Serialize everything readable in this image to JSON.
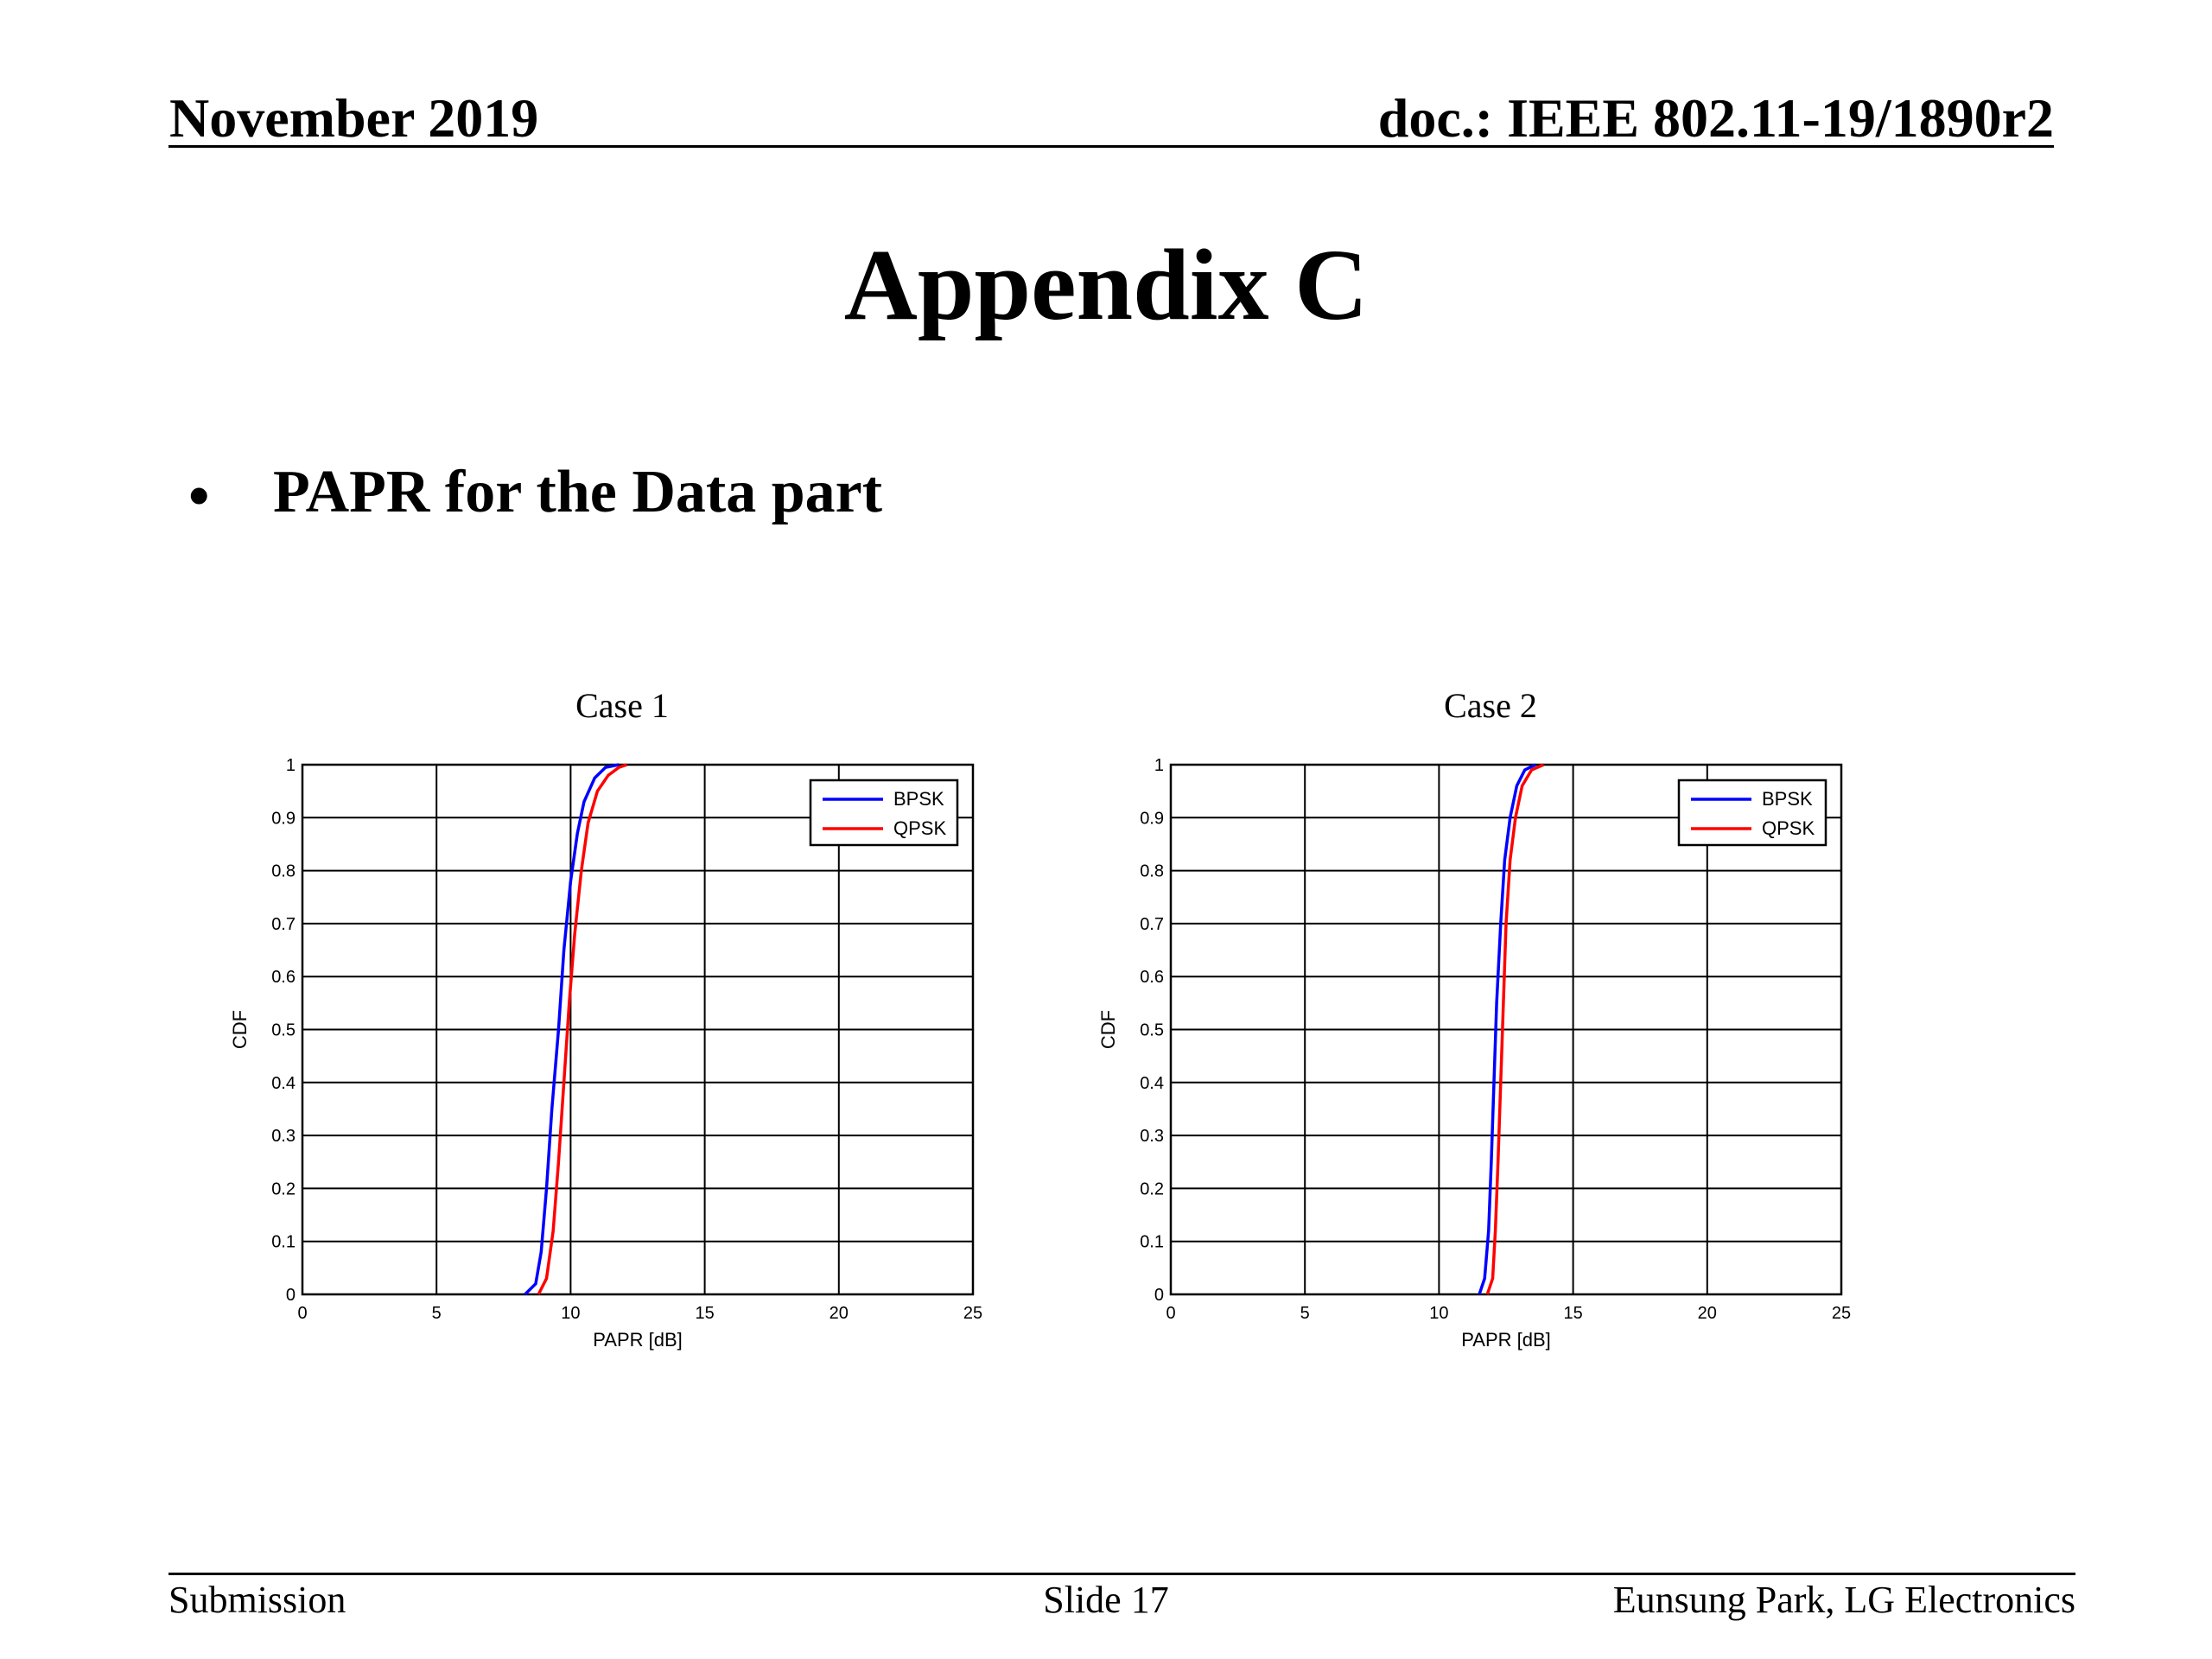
{
  "header": {
    "date": "November 2019",
    "doc": "doc.: IEEE 802.11-19/1890r2"
  },
  "slide": {
    "title": "Appendix C",
    "bullet_marker": "•",
    "bullet_text": "PAPR for the Data part"
  },
  "footer": {
    "left": "Submission",
    "center": "Slide 17",
    "right": "Eunsung Park, LG Electronics"
  },
  "chart_data": [
    {
      "type": "line",
      "title": "Case 1",
      "xlabel": "PAPR [dB]",
      "ylabel": "CDF",
      "xlim": [
        0,
        25
      ],
      "ylim": [
        0,
        1
      ],
      "xticks": [
        "0",
        "5",
        "10",
        "15",
        "20",
        "25"
      ],
      "yticks": [
        "0",
        "0.1",
        "0.2",
        "0.3",
        "0.4",
        "0.5",
        "0.6",
        "0.7",
        "0.8",
        "0.9",
        "1"
      ],
      "grid": true,
      "legend_position": "top-right",
      "series": [
        {
          "name": "BPSK",
          "color": "#0000ff",
          "points": [
            [
              8.3,
              0
            ],
            [
              8.7,
              0.02
            ],
            [
              8.9,
              0.08
            ],
            [
              9.1,
              0.2
            ],
            [
              9.3,
              0.35
            ],
            [
              9.55,
              0.5
            ],
            [
              9.75,
              0.65
            ],
            [
              10.0,
              0.78
            ],
            [
              10.25,
              0.87
            ],
            [
              10.5,
              0.93
            ],
            [
              10.9,
              0.975
            ],
            [
              11.3,
              0.995
            ],
            [
              11.8,
              1
            ]
          ]
        },
        {
          "name": "QPSK",
          "color": "#ff0000",
          "points": [
            [
              8.8,
              0
            ],
            [
              9.1,
              0.03
            ],
            [
              9.35,
              0.12
            ],
            [
              9.55,
              0.25
            ],
            [
              9.75,
              0.4
            ],
            [
              9.95,
              0.55
            ],
            [
              10.15,
              0.68
            ],
            [
              10.4,
              0.8
            ],
            [
              10.65,
              0.89
            ],
            [
              11.0,
              0.95
            ],
            [
              11.4,
              0.98
            ],
            [
              11.8,
              0.995
            ],
            [
              12.1,
              1
            ]
          ]
        }
      ]
    },
    {
      "type": "line",
      "title": "Case 2",
      "xlabel": "PAPR [dB]",
      "ylabel": "CDF",
      "xlim": [
        0,
        25
      ],
      "ylim": [
        0,
        1
      ],
      "xticks": [
        "0",
        "5",
        "10",
        "15",
        "20",
        "25"
      ],
      "yticks": [
        "0",
        "0.1",
        "0.2",
        "0.3",
        "0.4",
        "0.5",
        "0.6",
        "0.7",
        "0.8",
        "0.9",
        "1"
      ],
      "grid": true,
      "legend_position": "top-right",
      "series": [
        {
          "name": "BPSK",
          "color": "#0000ff",
          "points": [
            [
              11.5,
              0
            ],
            [
              11.7,
              0.03
            ],
            [
              11.85,
              0.12
            ],
            [
              11.95,
              0.25
            ],
            [
              12.05,
              0.4
            ],
            [
              12.15,
              0.55
            ],
            [
              12.3,
              0.7
            ],
            [
              12.45,
              0.82
            ],
            [
              12.65,
              0.9
            ],
            [
              12.9,
              0.96
            ],
            [
              13.2,
              0.99
            ],
            [
              13.6,
              1
            ]
          ]
        },
        {
          "name": "QPSK",
          "color": "#ff0000",
          "points": [
            [
              11.8,
              0
            ],
            [
              12.0,
              0.03
            ],
            [
              12.1,
              0.12
            ],
            [
              12.2,
              0.25
            ],
            [
              12.3,
              0.4
            ],
            [
              12.4,
              0.55
            ],
            [
              12.5,
              0.7
            ],
            [
              12.65,
              0.82
            ],
            [
              12.85,
              0.9
            ],
            [
              13.1,
              0.96
            ],
            [
              13.45,
              0.99
            ],
            [
              13.9,
              1
            ]
          ]
        }
      ]
    }
  ]
}
